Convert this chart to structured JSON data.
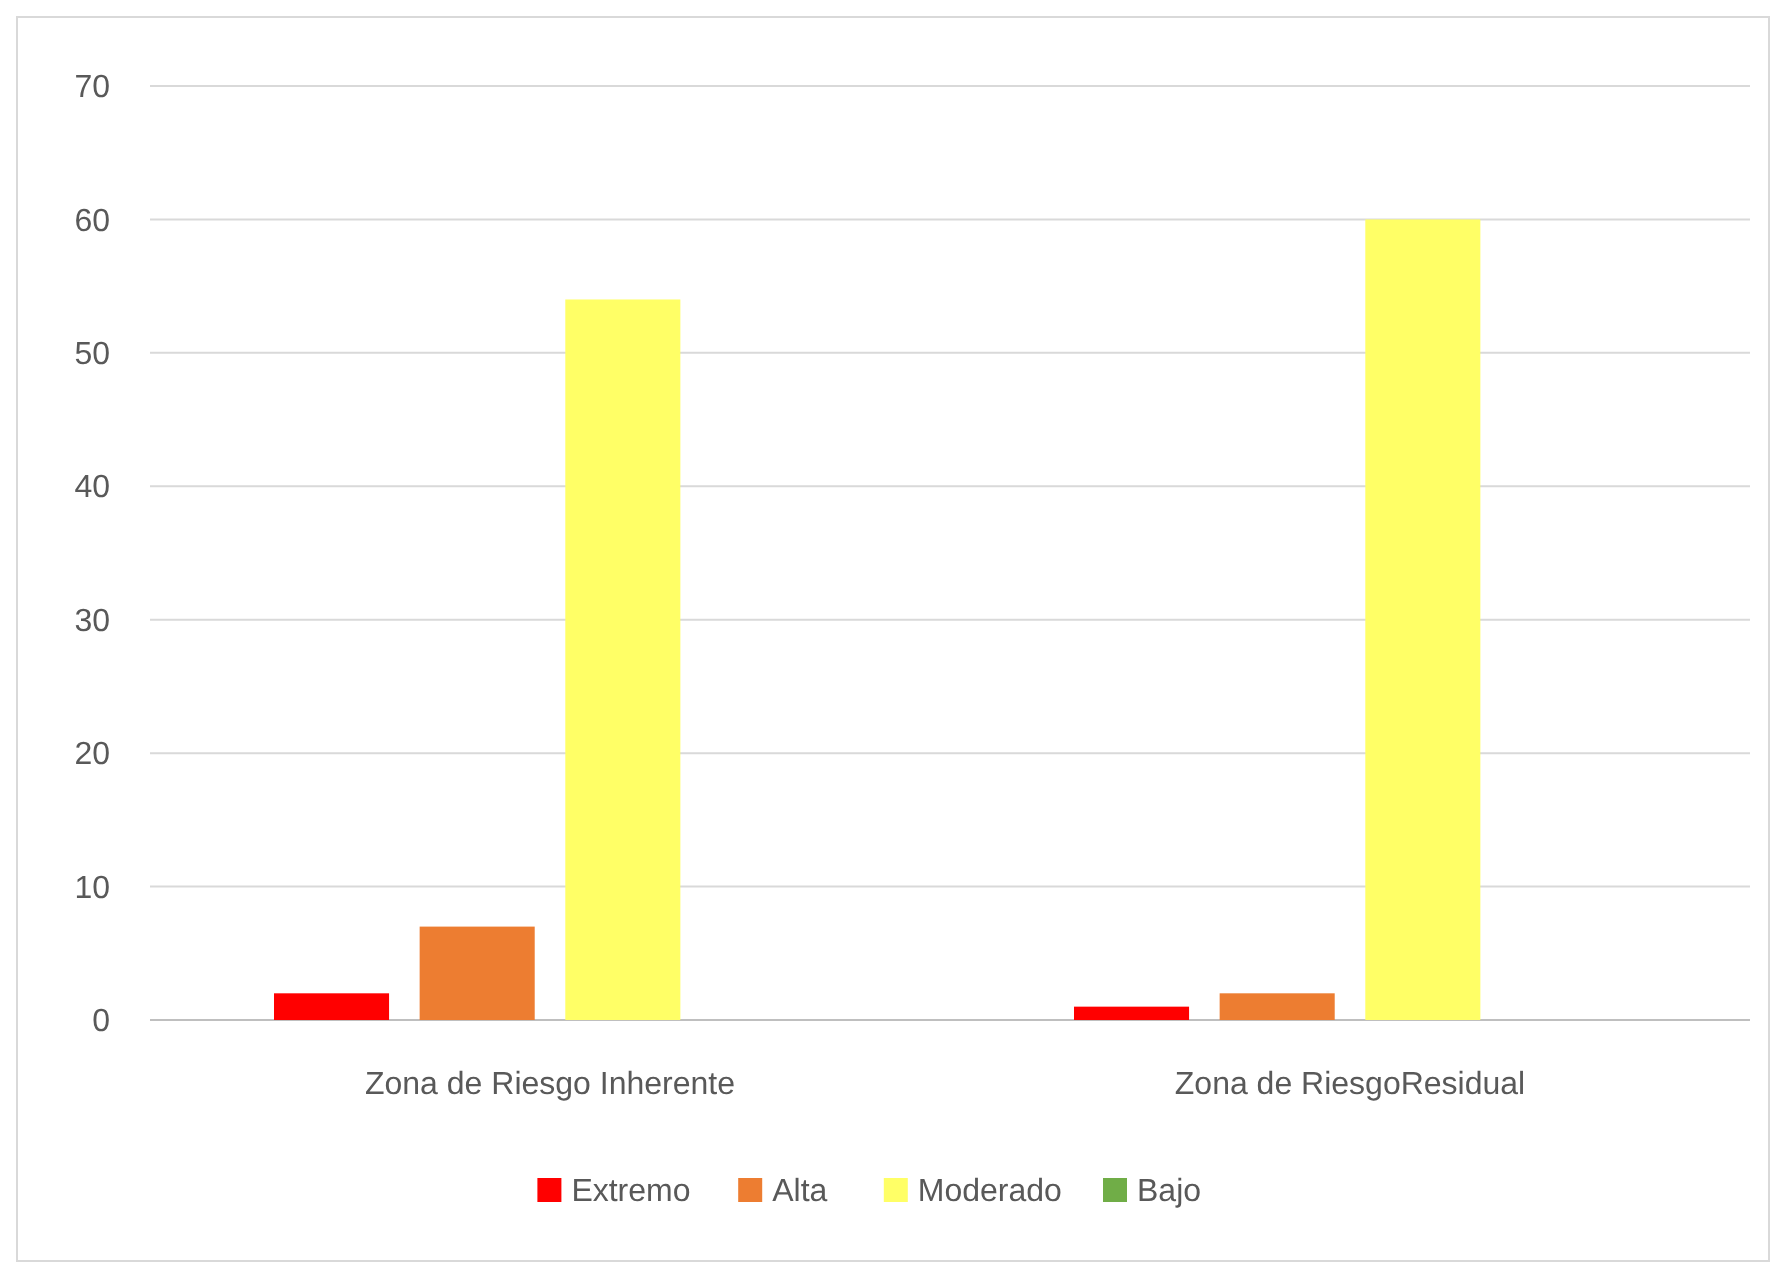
{
  "chart_data": {
    "type": "bar",
    "categories": [
      "Zona de Riesgo Inherente",
      "Zona de RiesgoResidual"
    ],
    "series": [
      {
        "name": "Extremo",
        "color": "#ff0000",
        "values": [
          2,
          1
        ]
      },
      {
        "name": "Alta",
        "color": "#ed7d31",
        "values": [
          7,
          2
        ]
      },
      {
        "name": "Moderado",
        "color": "#ffff66",
        "values": [
          54,
          60
        ]
      },
      {
        "name": "Bajo",
        "color": "#70ad47",
        "values": [
          0,
          0
        ]
      }
    ],
    "ylim": [
      0,
      70
    ],
    "yticks": [
      0,
      10,
      20,
      30,
      40,
      50,
      60,
      70
    ],
    "grid": "y",
    "legend": "bottom"
  }
}
